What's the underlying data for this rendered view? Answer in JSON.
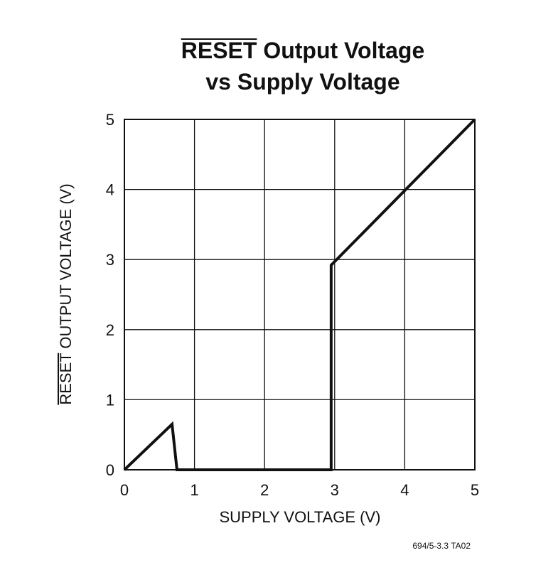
{
  "chart_data": {
    "type": "line",
    "title": [
      "RESET Output Voltage",
      "vs Supply Voltage"
    ],
    "title_overline": "RESET",
    "x_label": "SUPPLY VOLTAGE (V)",
    "y_label": "RESET OUTPUT VOLTAGE (V)",
    "footnote": "694/5-3.3 TA02",
    "x": [
      0,
      0.68,
      0.75,
      2.95,
      2.95,
      5
    ],
    "series": [
      {
        "name": "RESET",
        "color": "#111111",
        "values": [
          0,
          0.65,
          0,
          0,
          2.92,
          5
        ]
      }
    ],
    "xlim": [
      0,
      5
    ],
    "ylim": [
      0,
      5
    ],
    "xticks": [
      0,
      1,
      2,
      3,
      4,
      5
    ],
    "yticks": [
      0,
      1,
      2,
      3,
      4,
      5
    ],
    "grid": true
  }
}
